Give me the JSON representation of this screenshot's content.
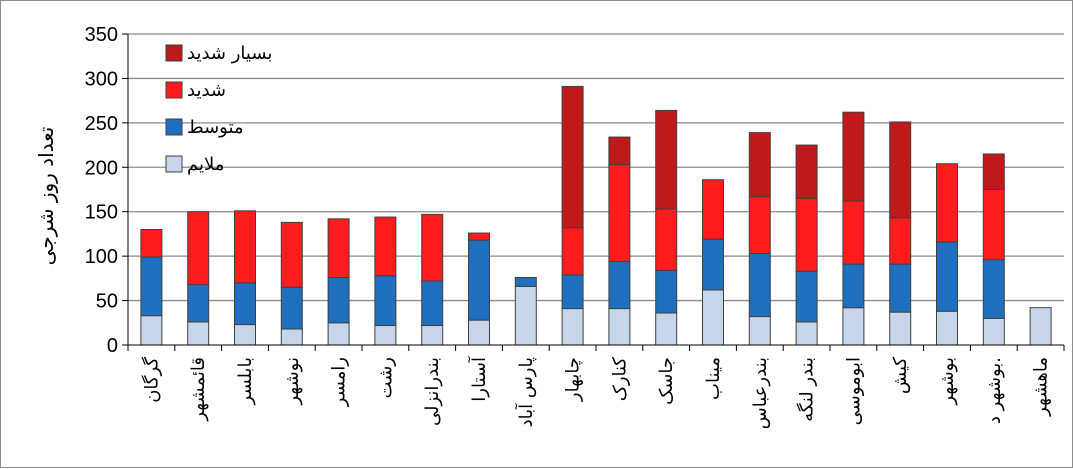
{
  "chart_data": {
    "type": "bar",
    "stacked": true,
    "ylabel": "تعداد روز شرجی",
    "ylim": [
      0,
      350
    ],
    "yticks": [
      0,
      50,
      100,
      150,
      200,
      250,
      300,
      350
    ],
    "grid": true,
    "legend_position": "top-left",
    "categories": [
      "گرگان",
      "قائمشهر",
      "بابلسر",
      "نوشهر",
      "رامسر",
      "رشت",
      "بندرانزلی",
      "آستارا",
      "پارس آباد",
      "چابهار",
      "کنارک",
      "جاسک",
      "میناب",
      "بندرعباس",
      "بندر لنگه",
      "ابوموسی",
      "کیش",
      "بوشهر",
      "بوشهر د.",
      "ماهشهر"
    ],
    "series": [
      {
        "name": "ملایم",
        "color": "#c6d5ea",
        "values": [
          33,
          26,
          23,
          18,
          25,
          22,
          22,
          28,
          66,
          41,
          41,
          36,
          62,
          32,
          26,
          42,
          37,
          38,
          30,
          42
        ]
      },
      {
        "name": "متوسط",
        "color": "#1f6fbf",
        "values": [
          66,
          42,
          47,
          47,
          51,
          56,
          50,
          90,
          10,
          38,
          53,
          48,
          57,
          71,
          57,
          49,
          54,
          78,
          66,
          0
        ]
      },
      {
        "name": "شدید",
        "color": "#ff1c1c",
        "values": [
          31,
          82,
          81,
          73,
          66,
          66,
          75,
          8,
          0,
          53,
          109,
          69,
          67,
          64,
          82,
          71,
          52,
          88,
          79,
          0
        ]
      },
      {
        "name": "بسیار شدید",
        "color": "#c0191c",
        "values": [
          0,
          0,
          0,
          0,
          0,
          0,
          0,
          0,
          0,
          159,
          31,
          111,
          0,
          72,
          60,
          100,
          108,
          0,
          40,
          0
        ]
      }
    ]
  }
}
